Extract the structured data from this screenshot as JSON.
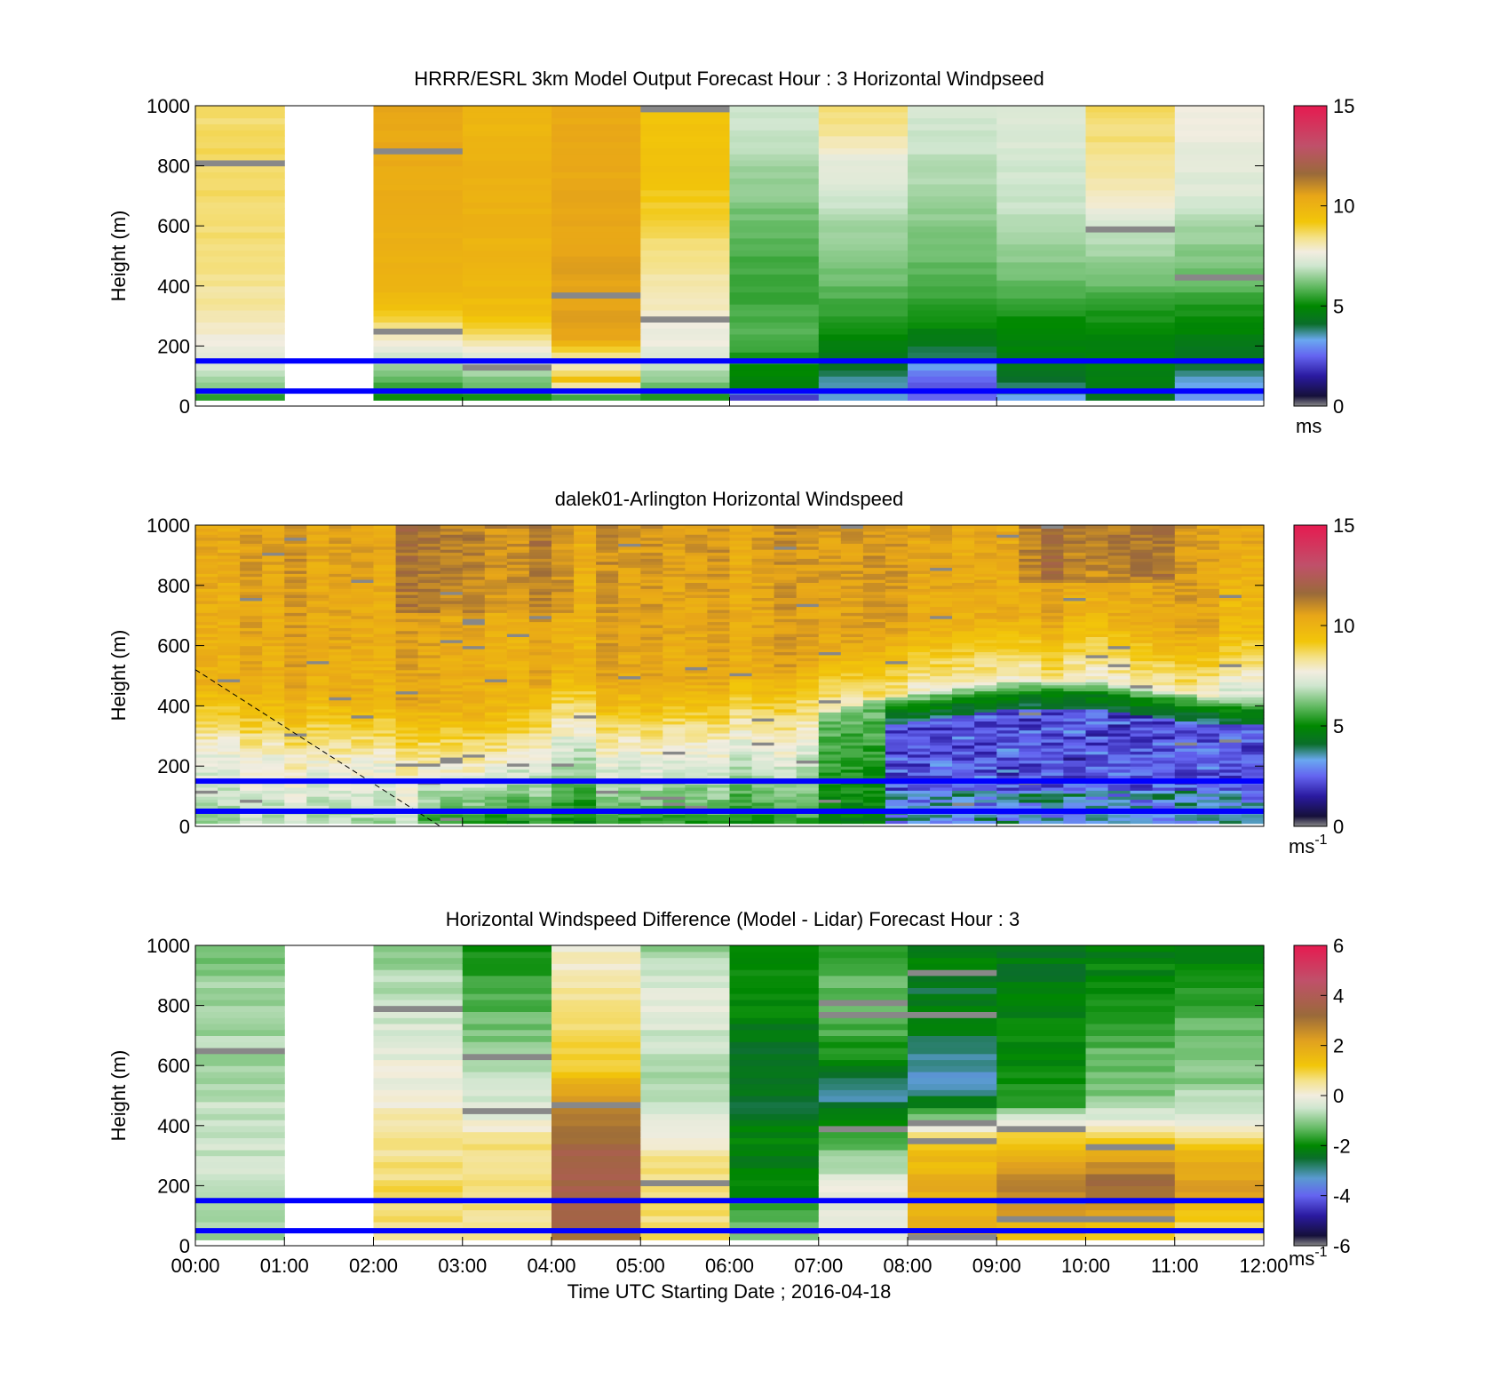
{
  "figure": {
    "background": "#ffffff",
    "line_color": "#0000ff"
  },
  "colormaps": {
    "speed": [
      [
        0,
        "#888888"
      ],
      [
        0.5,
        "#15103a"
      ],
      [
        1.5,
        "#2a1aa0"
      ],
      [
        2.5,
        "#6464f0"
      ],
      [
        3.3,
        "#6aa8f0"
      ],
      [
        4.1,
        "#0a6e2a"
      ],
      [
        5,
        "#008800"
      ],
      [
        6,
        "#66bb66"
      ],
      [
        7,
        "#cfe6cf"
      ],
      [
        7.7,
        "#f2ede0"
      ],
      [
        8.4,
        "#f4e28a"
      ],
      [
        9.2,
        "#f2c60a"
      ],
      [
        10.5,
        "#e8a618"
      ],
      [
        11.6,
        "#9a6a3a"
      ],
      [
        13,
        "#c0506a"
      ],
      [
        15,
        "#e61a50"
      ]
    ],
    "diff": [
      [
        -6,
        "#888888"
      ],
      [
        -5.6,
        "#15103a"
      ],
      [
        -4.8,
        "#2a1aa0"
      ],
      [
        -4,
        "#6464f0"
      ],
      [
        -3.3,
        "#5a9ad0"
      ],
      [
        -2.5,
        "#0a6e2a"
      ],
      [
        -2,
        "#008800"
      ],
      [
        -1.3,
        "#66bb66"
      ],
      [
        -0.5,
        "#cfe6cf"
      ],
      [
        0,
        "#f2ede0"
      ],
      [
        0.6,
        "#f4e28a"
      ],
      [
        1.2,
        "#f2c60a"
      ],
      [
        2.2,
        "#e0a020"
      ],
      [
        3.2,
        "#9a6a3a"
      ],
      [
        4.6,
        "#c0506a"
      ],
      [
        6,
        "#e61a50"
      ]
    ]
  },
  "chart_data": [
    {
      "type": "heatmap",
      "title": "HRRR/ESRL 3km Model Output   Forecast Hour : 3 Horizontal Windpseed",
      "xlabel": "",
      "ylabel": "Height (m)",
      "xlim": [
        0,
        12
      ],
      "ylim": [
        0,
        1000
      ],
      "yticks": [
        "0",
        "200",
        "400",
        "600",
        "800",
        "1000"
      ],
      "xticks": [],
      "colorbar": {
        "min": 0,
        "max": 15,
        "ticks": [
          "0",
          "5",
          "10",
          "15"
        ],
        "unit": "ms",
        "unit_sup": ""
      },
      "reference_lines_m": [
        50,
        150
      ],
      "hourly_profiles_ms": [
        {
          "hour": "00:00",
          "values": [
            [
              30,
              5.5
            ],
            [
              100,
              6.9
            ],
            [
              200,
              7.6
            ],
            [
              300,
              8.1
            ],
            [
              450,
              8.4
            ],
            [
              600,
              8.6
            ],
            [
              850,
              8.7
            ],
            [
              1000,
              8.5
            ]
          ]
        },
        {
          "hour": "01:00",
          "values": []
        },
        {
          "hour": "02:00",
          "values": [
            [
              30,
              5
            ],
            [
              90,
              6
            ],
            [
              150,
              6.7
            ],
            [
              230,
              8
            ],
            [
              300,
              9
            ],
            [
              400,
              10
            ],
            [
              700,
              10.2
            ],
            [
              1000,
              10.5
            ]
          ]
        },
        {
          "hour": "03:00",
          "values": [
            [
              30,
              5.2
            ],
            [
              90,
              6.3
            ],
            [
              150,
              7
            ],
            [
              230,
              8.4
            ],
            [
              300,
              9.5
            ],
            [
              500,
              10
            ],
            [
              800,
              10
            ],
            [
              1000,
              9.8
            ]
          ]
        },
        {
          "hour": "04:00",
          "values": [
            [
              30,
              5.5
            ],
            [
              90,
              9.4
            ],
            [
              150,
              7.5
            ],
            [
              230,
              10.6
            ],
            [
              400,
              10.6
            ],
            [
              700,
              10.4
            ],
            [
              1000,
              10.4
            ]
          ]
        },
        {
          "hour": "05:00",
          "values": [
            [
              30,
              5.3
            ],
            [
              100,
              6.5
            ],
            [
              200,
              7.5
            ],
            [
              350,
              8
            ],
            [
              450,
              8.3
            ],
            [
              600,
              8.8
            ],
            [
              800,
              9.4
            ],
            [
              1000,
              9.2
            ]
          ]
        },
        {
          "hour": "06:00",
          "values": [
            [
              30,
              2
            ],
            [
              70,
              4.8
            ],
            [
              150,
              5.2
            ],
            [
              230,
              5.8
            ],
            [
              400,
              5.5
            ],
            [
              600,
              6
            ],
            [
              800,
              6.6
            ],
            [
              1000,
              7.1
            ]
          ]
        },
        {
          "hour": "07:00",
          "values": [
            [
              30,
              3.4
            ],
            [
              80,
              3.6
            ],
            [
              150,
              4.4
            ],
            [
              250,
              5
            ],
            [
              400,
              6
            ],
            [
              600,
              6.6
            ],
            [
              730,
              7.2
            ],
            [
              800,
              7.4
            ],
            [
              950,
              8.5
            ]
          ]
        },
        {
          "hour": "08:00",
          "values": [
            [
              30,
              2.4
            ],
            [
              100,
              2.5
            ],
            [
              180,
              4
            ],
            [
              280,
              5.1
            ],
            [
              420,
              5.8
            ],
            [
              600,
              6.3
            ],
            [
              800,
              6.8
            ],
            [
              1000,
              7.2
            ]
          ]
        },
        {
          "hour": "09:00",
          "values": [
            [
              30,
              3.4
            ],
            [
              100,
              4.2
            ],
            [
              200,
              4.8
            ],
            [
              300,
              5.2
            ],
            [
              420,
              6
            ],
            [
              600,
              6.8
            ],
            [
              800,
              7.1
            ],
            [
              1000,
              7.3
            ]
          ]
        },
        {
          "hour": "10:00",
          "values": [
            [
              30,
              4.5
            ],
            [
              100,
              4.6
            ],
            [
              200,
              4.8
            ],
            [
              300,
              5.2
            ],
            [
              420,
              6.1
            ],
            [
              600,
              7
            ],
            [
              700,
              8
            ],
            [
              850,
              8.4
            ],
            [
              1000,
              8.6
            ]
          ]
        },
        {
          "hour": "11:00",
          "values": [
            [
              30,
              3
            ],
            [
              100,
              3.5
            ],
            [
              170,
              4.4
            ],
            [
              300,
              5.1
            ],
            [
              420,
              6
            ],
            [
              600,
              6.6
            ],
            [
              700,
              7.2
            ],
            [
              800,
              7.4
            ],
            [
              1000,
              7.8
            ]
          ]
        }
      ]
    },
    {
      "type": "heatmap",
      "title": "dalek01-Arlington  Horizontal Windspeed",
      "xlabel": "",
      "ylabel": "Height (m)",
      "xlim": [
        0,
        12
      ],
      "ylim": [
        0,
        1000
      ],
      "yticks": [
        "0",
        "200",
        "400",
        "600",
        "800",
        "1000"
      ],
      "xticks": [],
      "colorbar": {
        "min": 0,
        "max": 15,
        "ticks": [
          "0",
          "5",
          "10",
          "15"
        ],
        "unit": "ms",
        "unit_sup": "-1"
      },
      "reference_lines_m": [
        50,
        150
      ],
      "boundary_layer_top": {
        "time_h": [
          0,
          3.5,
          4,
          5,
          6.5,
          7.2,
          7.7,
          9,
          10,
          11,
          11.7
        ],
        "height_m": [
          250,
          170,
          300,
          250,
          300,
          380,
          420,
          470,
          480,
          440,
          420
        ]
      },
      "dashed_line": {
        "time_h": [
          0,
          2.75
        ],
        "height_m": [
          520,
          0
        ]
      }
    },
    {
      "type": "heatmap",
      "title": "Horizontal Windspeed Difference (Model - Lidar) Forecast Hour : 3",
      "xlabel": "Time UTC  Starting Date ; 2016-04-18",
      "ylabel": "Height (m)",
      "xlim": [
        0,
        12
      ],
      "ylim": [
        0,
        1000
      ],
      "yticks": [
        "0",
        "200",
        "400",
        "600",
        "800",
        "1000"
      ],
      "xticks": [
        "00:00",
        "01:00",
        "02:00",
        "03:00",
        "04:00",
        "05:00",
        "06:00",
        "07:00",
        "08:00",
        "09:00",
        "10:00",
        "11:00",
        "12:00"
      ],
      "colorbar": {
        "min": -6,
        "max": 6,
        "ticks": [
          "-6",
          "-4",
          "-2",
          "0",
          "2",
          "4",
          "6"
        ],
        "unit": "ms",
        "unit_sup": "-1"
      },
      "reference_lines_m": [
        50,
        150
      ],
      "hourly_profiles_ms": [
        {
          "hour": "00:00",
          "values": [
            [
              30,
              -0.9
            ],
            [
              200,
              -0.5
            ],
            [
              400,
              -0.5
            ],
            [
              600,
              -0.8
            ],
            [
              800,
              -0.8
            ],
            [
              1000,
              -1.2
            ]
          ]
        },
        {
          "hour": "01:00",
          "values": []
        },
        {
          "hour": "02:00",
          "values": [
            [
              30,
              0.7
            ],
            [
              200,
              0.8
            ],
            [
              350,
              0.5
            ],
            [
              500,
              0.1
            ],
            [
              700,
              -0.3
            ],
            [
              850,
              -0.7
            ],
            [
              1000,
              -1
            ]
          ]
        },
        {
          "hour": "03:00",
          "values": [
            [
              30,
              0.6
            ],
            [
              200,
              0.7
            ],
            [
              350,
              0.6
            ],
            [
              430,
              -0.3
            ],
            [
              600,
              -0.8
            ],
            [
              800,
              -1.4
            ],
            [
              1000,
              -1.8
            ]
          ]
        },
        {
          "hour": "04:00",
          "values": [
            [
              30,
              3
            ],
            [
              100,
              3.6
            ],
            [
              300,
              3.6
            ],
            [
              450,
              2.8
            ],
            [
              600,
              1.1
            ],
            [
              800,
              0.6
            ],
            [
              1000,
              0.1
            ]
          ]
        },
        {
          "hour": "05:00",
          "values": [
            [
              30,
              0.7
            ],
            [
              200,
              0.8
            ],
            [
              300,
              0.5
            ],
            [
              450,
              -0.5
            ],
            [
              600,
              -0.7
            ],
            [
              800,
              -0.2
            ],
            [
              1000,
              -1
            ]
          ]
        },
        {
          "hour": "06:00",
          "values": [
            [
              30,
              -1.2
            ],
            [
              200,
              -2
            ],
            [
              400,
              -2.2
            ],
            [
              550,
              -2.6
            ],
            [
              650,
              -2.4
            ],
            [
              800,
              -2
            ],
            [
              1000,
              -2
            ]
          ]
        },
        {
          "hour": "07:00",
          "values": [
            [
              30,
              -0.4
            ],
            [
              200,
              -0.1
            ],
            [
              330,
              -1.2
            ],
            [
              450,
              -2.4
            ],
            [
              500,
              -3.1
            ],
            [
              600,
              -2.1
            ],
            [
              800,
              -1.2
            ],
            [
              1000,
              -1.7
            ]
          ]
        },
        {
          "hour": "08:00",
          "values": [
            [
              30,
              1.7
            ],
            [
              200,
              1.8
            ],
            [
              350,
              1.3
            ],
            [
              450,
              -1.8
            ],
            [
              550,
              -3.3
            ],
            [
              650,
              -3
            ],
            [
              750,
              -2
            ],
            [
              850,
              -2.5
            ],
            [
              950,
              -2.2
            ]
          ]
        },
        {
          "hour": "09:00",
          "values": [
            [
              30,
              1.5
            ],
            [
              200,
              2.8
            ],
            [
              300,
              2
            ],
            [
              400,
              0.3
            ],
            [
              480,
              -1.9
            ],
            [
              600,
              -2
            ],
            [
              800,
              -2.2
            ],
            [
              1000,
              -2.4
            ]
          ]
        },
        {
          "hour": "10:00",
          "values": [
            [
              30,
              0.9
            ],
            [
              200,
              3.4
            ],
            [
              300,
              2
            ],
            [
              400,
              0
            ],
            [
              500,
              -1.1
            ],
            [
              700,
              -1.5
            ],
            [
              900,
              -2
            ],
            [
              1000,
              -2.2
            ]
          ]
        },
        {
          "hour": "11:00",
          "values": [
            [
              30,
              0.3
            ],
            [
              200,
              2.2
            ],
            [
              300,
              1.8
            ],
            [
              400,
              -0.1
            ],
            [
              550,
              -1
            ],
            [
              700,
              -1.2
            ],
            [
              850,
              -1.7
            ],
            [
              1000,
              -2.2
            ]
          ]
        }
      ]
    }
  ]
}
